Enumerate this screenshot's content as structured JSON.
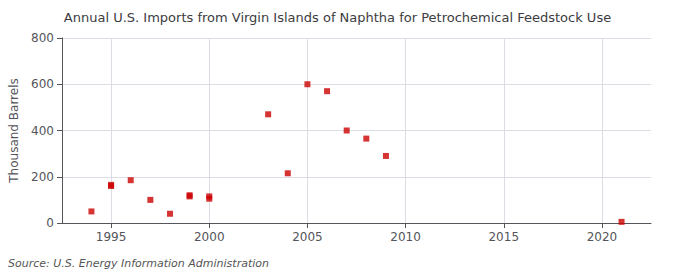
{
  "chart_data": {
    "type": "scatter",
    "title": "Annual U.S. Imports from Virgin Islands of Naphtha for Petrochemical Feedstock Use",
    "ylabel": "Thousand Barrels",
    "annotations": [
      "Source: U.S. Energy Information Administration"
    ],
    "x": [
      1994,
      1995,
      1995,
      1996,
      1997,
      1998,
      1999,
      1999,
      2000,
      2000,
      2003,
      2004,
      2005,
      2006,
      2007,
      2008,
      2009,
      2021
    ],
    "values": [
      50,
      160,
      165,
      185,
      100,
      40,
      120,
      115,
      115,
      105,
      470,
      215,
      600,
      570,
      400,
      365,
      290,
      5
    ],
    "color": "#cc0000",
    "marker": "square",
    "xlim": [
      1992.5,
      2022.5
    ],
    "xticks": [
      1995,
      2000,
      2005,
      2010,
      2015,
      2020
    ],
    "ylim": [
      0,
      800
    ],
    "yticks": [
      0,
      200,
      400,
      600,
      800
    ],
    "grid": true
  }
}
